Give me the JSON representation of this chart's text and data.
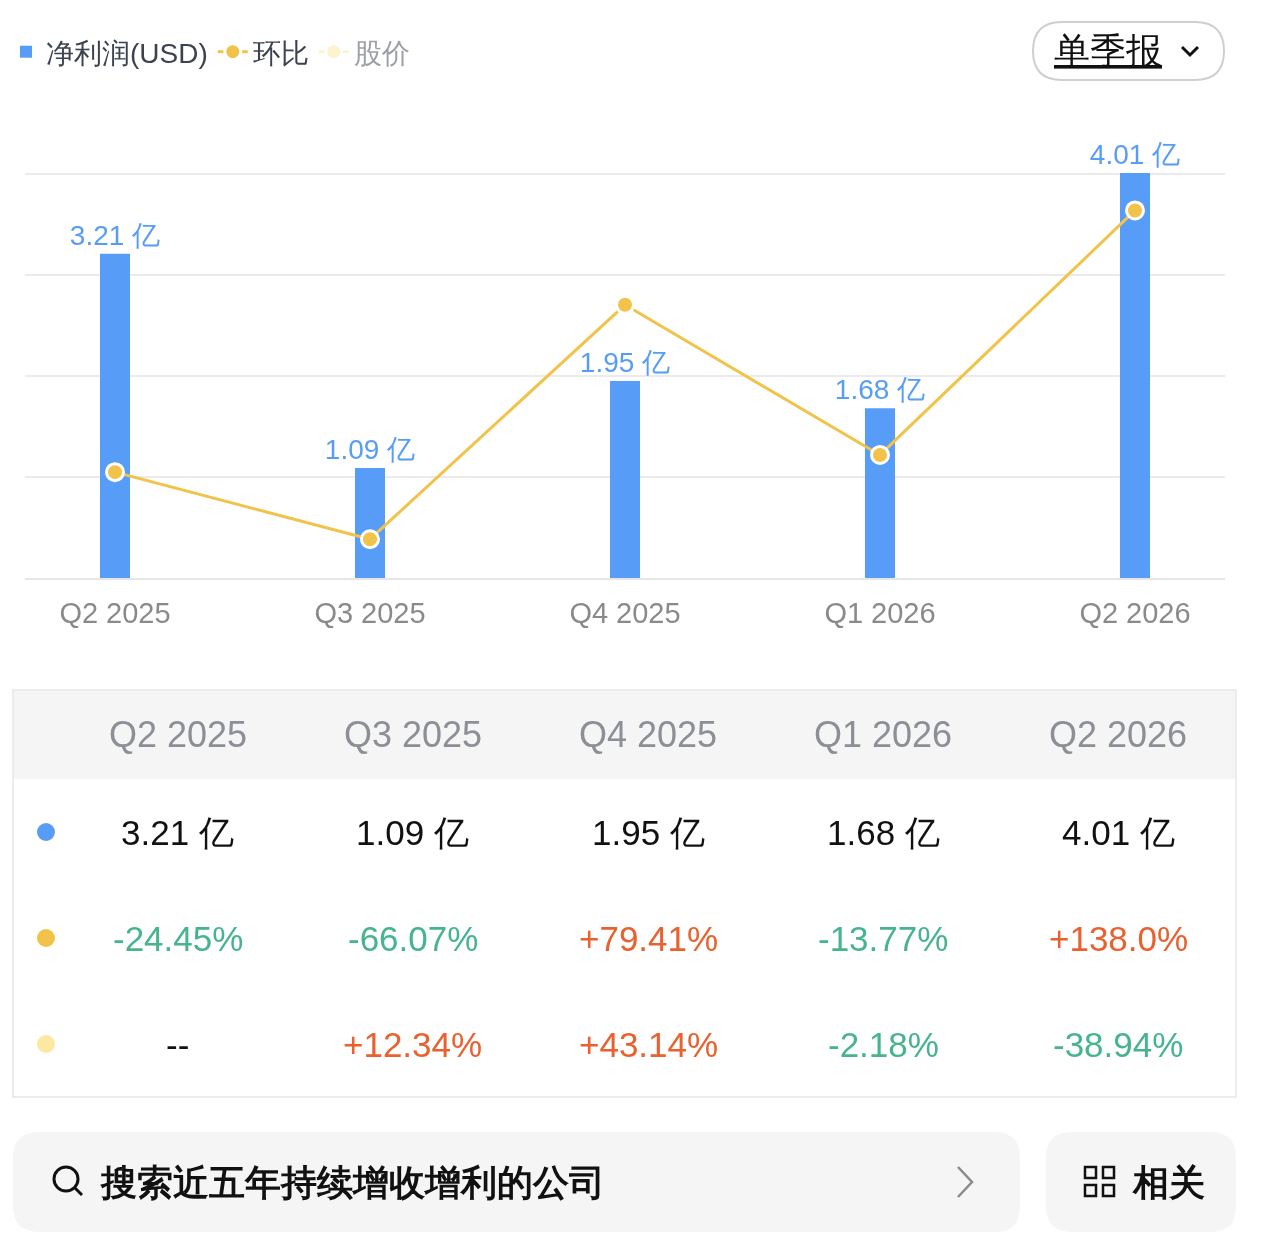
{
  "chart_data": {
    "type": "bar",
    "categories": [
      "Q2 2025",
      "Q3 2025",
      "Q4 2025",
      "Q1 2026",
      "Q2 2026"
    ],
    "series": [
      {
        "name": "净利润(USD)",
        "color": "#579df8",
        "values": [
          3.21,
          1.09,
          1.95,
          1.68,
          4.01
        ],
        "value_labels": [
          "3.21 亿",
          "1.09 亿",
          "1.95 亿",
          "1.68 亿",
          "4.01 亿"
        ]
      },
      {
        "name": "环比",
        "type": "line",
        "axis": "y2",
        "color": "#f2c34a",
        "values": [
          -24.45,
          -66.07,
          79.41,
          -13.77,
          138.0
        ],
        "value_labels": [
          "-24.45%",
          "-66.07%",
          "+79.41%",
          "-13.77%",
          "+138.0%"
        ]
      },
      {
        "name": "股价",
        "type": "line",
        "color": "#fce8a0",
        "values": [
          null,
          null,
          null,
          null,
          null
        ],
        "value_labels": [
          "--",
          "+12.34%",
          "+43.14%",
          "-2.18%",
          "-38.94%"
        ]
      }
    ],
    "yticks": [
      {
        "value": 0,
        "label": null
      },
      {
        "value": 1,
        "label": null
      },
      {
        "value": 2,
        "label": null
      },
      {
        "value": 3,
        "label": null
      },
      {
        "value": 4,
        "label": null
      }
    ],
    "tick_labels": "x",
    "grid": "y",
    "legend": "top left",
    "marker": "circle",
    "line_style": "solid",
    "annotations": [
      "单季报",
      "搜索近五年持续增收增利的公司",
      "相关"
    ]
  }
}
